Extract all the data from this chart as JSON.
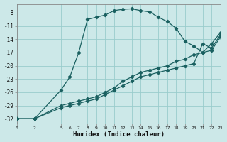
{
  "xlabel": "Humidex (Indice chaleur)",
  "bg_color": "#cce8e8",
  "grid_color": "#99cccc",
  "line_color": "#1a6060",
  "xlim": [
    0,
    23
  ],
  "ylim": [
    -33,
    -6
  ],
  "xticks": [
    0,
    2,
    5,
    6,
    7,
    8,
    9,
    10,
    11,
    12,
    13,
    14,
    15,
    16,
    17,
    18,
    19,
    20,
    21,
    22,
    23
  ],
  "yticks": [
    -32,
    -29,
    -26,
    -23,
    -20,
    -17,
    -14,
    -11,
    -8
  ],
  "curve1_x": [
    0,
    2,
    5,
    6,
    7,
    8,
    9,
    10,
    11,
    12,
    13,
    14,
    15,
    16,
    17,
    18,
    19,
    20,
    21,
    22,
    23
  ],
  "curve1_y": [
    -32,
    -32,
    -25.5,
    -22.5,
    -17.0,
    -9.5,
    -9.0,
    -8.5,
    -7.5,
    -7.2,
    -7.1,
    -7.5,
    -7.8,
    -9.0,
    -10.0,
    -11.5,
    -14.5,
    -15.5,
    -17.0,
    -15.0,
    -12.5
  ],
  "curve2_x": [
    0,
    2,
    5,
    6,
    7,
    8,
    9,
    10,
    11,
    12,
    13,
    14,
    15,
    16,
    17,
    18,
    19,
    20,
    21,
    22,
    23
  ],
  "curve2_y": [
    -32,
    -32,
    -29.0,
    -28.5,
    -28.0,
    -27.5,
    -27.0,
    -26.0,
    -25.0,
    -23.5,
    -22.5,
    -21.5,
    -21.0,
    -20.5,
    -20.0,
    -19.0,
    -18.5,
    -17.5,
    -17.0,
    -16.5,
    -13.5
  ],
  "curve3_x": [
    0,
    2,
    5,
    6,
    7,
    8,
    9,
    10,
    11,
    12,
    13,
    14,
    15,
    16,
    17,
    18,
    19,
    20,
    21,
    22,
    23
  ],
  "curve3_y": [
    -32,
    -32,
    -29.5,
    -29.0,
    -28.5,
    -28.0,
    -27.5,
    -26.5,
    -25.5,
    -24.5,
    -23.5,
    -22.5,
    -22.0,
    -21.5,
    -21.0,
    -20.5,
    -20.0,
    -19.5,
    -15.0,
    -16.0,
    -13.0
  ]
}
